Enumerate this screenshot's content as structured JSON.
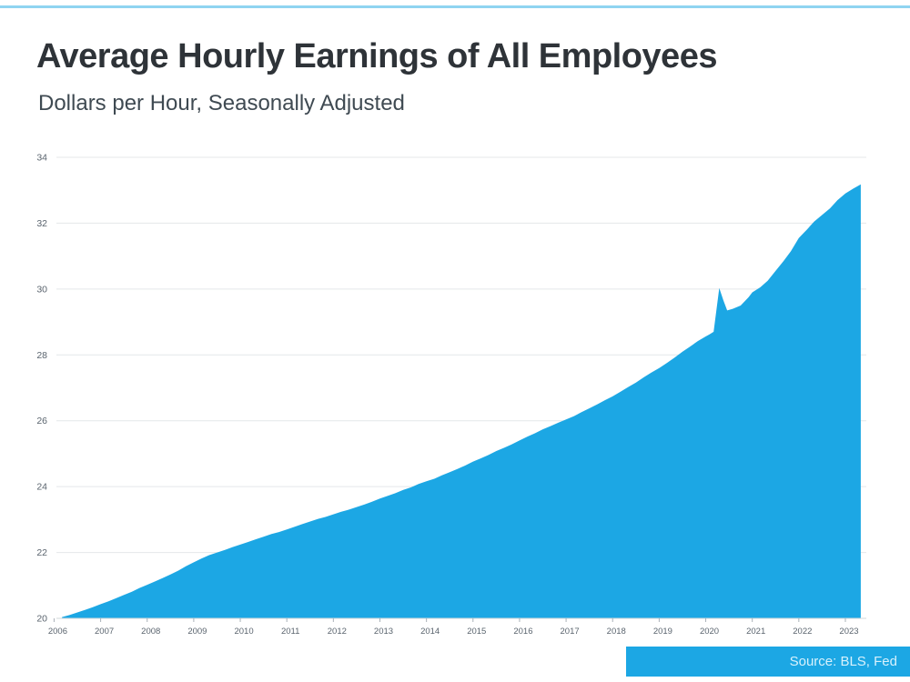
{
  "page": {
    "title": "Average Hourly Earnings of All Employees",
    "subtitle": "Dollars per Hour, Seasonally Adjusted",
    "source_label": "Source: BLS, Fed",
    "colors": {
      "accent": "#1ca7e4",
      "top_border": "#8fd4f1",
      "grid": "#e4e7e9",
      "axis_text": "#5a646e",
      "title_text": "#2e3338",
      "subtitle_text": "#3f4a52",
      "source_text": "#d8f1fc"
    }
  },
  "chart_data": {
    "type": "area",
    "title": "Average Hourly Earnings of All Employees",
    "subtitle": "Dollars per Hour, Seasonally Adjusted",
    "xlabel": "",
    "ylabel": "Dollars per Hour",
    "xlim": [
      2006.05,
      2023.45
    ],
    "ylim": [
      20,
      34
    ],
    "x_ticks": [
      2006,
      2007,
      2008,
      2009,
      2010,
      2011,
      2012,
      2013,
      2014,
      2015,
      2016,
      2017,
      2018,
      2019,
      2020,
      2021,
      2022,
      2023
    ],
    "y_ticks": [
      20,
      22,
      24,
      26,
      28,
      30,
      32,
      34
    ],
    "grid": "horizontal",
    "legend": "none",
    "fill_color": "#1ca7e4",
    "source": "Source: BLS, Fed",
    "series": [
      {
        "name": "Average Hourly Earnings (USD/hour, seasonally adjusted)",
        "x": [
          2006.17,
          2006.33,
          2006.5,
          2006.67,
          2006.83,
          2007.0,
          2007.17,
          2007.33,
          2007.5,
          2007.67,
          2007.83,
          2008.0,
          2008.17,
          2008.33,
          2008.5,
          2008.67,
          2008.83,
          2009.0,
          2009.17,
          2009.33,
          2009.5,
          2009.67,
          2009.83,
          2010.0,
          2010.17,
          2010.33,
          2010.5,
          2010.67,
          2010.83,
          2011.0,
          2011.17,
          2011.33,
          2011.5,
          2011.67,
          2011.83,
          2012.0,
          2012.17,
          2012.33,
          2012.5,
          2012.67,
          2012.83,
          2013.0,
          2013.17,
          2013.33,
          2013.5,
          2013.67,
          2013.83,
          2014.0,
          2014.17,
          2014.33,
          2014.5,
          2014.67,
          2014.83,
          2015.0,
          2015.17,
          2015.33,
          2015.5,
          2015.67,
          2015.83,
          2016.0,
          2016.17,
          2016.33,
          2016.5,
          2016.67,
          2016.83,
          2017.0,
          2017.17,
          2017.33,
          2017.5,
          2017.67,
          2017.83,
          2018.0,
          2018.17,
          2018.33,
          2018.5,
          2018.67,
          2018.83,
          2019.0,
          2019.17,
          2019.33,
          2019.5,
          2019.67,
          2019.83,
          2020.0,
          2020.08,
          2020.17,
          2020.29,
          2020.38,
          2020.46,
          2020.58,
          2020.75,
          2020.92,
          2021.0,
          2021.17,
          2021.33,
          2021.5,
          2021.67,
          2021.83,
          2022.0,
          2022.17,
          2022.33,
          2022.5,
          2022.67,
          2022.83,
          2023.0,
          2023.17,
          2023.33
        ],
        "y": [
          20.04,
          20.1,
          20.18,
          20.26,
          20.34,
          20.43,
          20.52,
          20.61,
          20.71,
          20.81,
          20.92,
          21.02,
          21.12,
          21.22,
          21.33,
          21.45,
          21.58,
          21.7,
          21.82,
          21.92,
          22.0,
          22.08,
          22.16,
          22.24,
          22.32,
          22.4,
          22.48,
          22.56,
          22.62,
          22.7,
          22.78,
          22.86,
          22.94,
          23.02,
          23.08,
          23.16,
          23.24,
          23.3,
          23.38,
          23.46,
          23.54,
          23.64,
          23.72,
          23.8,
          23.9,
          23.98,
          24.08,
          24.16,
          24.24,
          24.34,
          24.44,
          24.54,
          24.64,
          24.76,
          24.86,
          24.96,
          25.08,
          25.18,
          25.28,
          25.4,
          25.52,
          25.62,
          25.74,
          25.84,
          25.94,
          26.04,
          26.14,
          26.26,
          26.38,
          26.5,
          26.62,
          26.74,
          26.88,
          27.02,
          27.16,
          27.32,
          27.46,
          27.6,
          27.76,
          27.92,
          28.1,
          28.26,
          28.42,
          28.56,
          28.62,
          28.7,
          30.03,
          29.65,
          29.35,
          29.4,
          29.5,
          29.75,
          29.9,
          30.05,
          30.25,
          30.55,
          30.85,
          31.15,
          31.55,
          31.8,
          32.05,
          32.25,
          32.45,
          32.7,
          32.9,
          33.05,
          33.18
        ]
      }
    ]
  }
}
